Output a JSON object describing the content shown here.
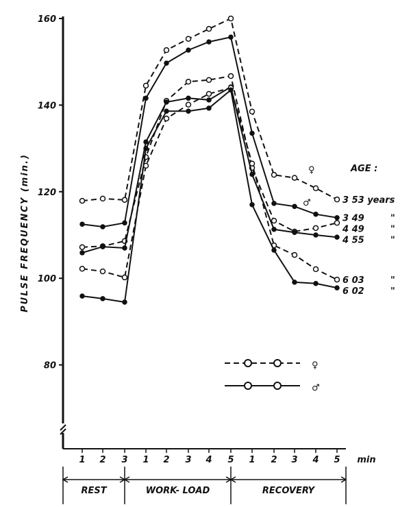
{
  "chart_data": {
    "type": "line",
    "title": "",
    "ylabel": "PULSE FREQUENCY (min.)",
    "xlabel": "min",
    "ylim": [
      60,
      160
    ],
    "yticks": [
      80,
      100,
      120,
      140,
      160
    ],
    "x_tick_labels": [
      "1",
      "2",
      "3",
      "1",
      "2",
      "3",
      "4",
      "5",
      "1",
      "2",
      "3",
      "4",
      "5"
    ],
    "phases": [
      {
        "label": "REST",
        "count": 3
      },
      {
        "label": "WORK- LOAD",
        "count": 5
      },
      {
        "label": "RECOVERY",
        "count": 5
      }
    ],
    "age_header": "AGE :",
    "age_female_symbol": "♀",
    "age_male_symbol": "♂",
    "legend": [
      {
        "sex": "female",
        "symbol": "♀",
        "style": "dashed-open-circle"
      },
      {
        "sex": "male",
        "symbol": "♂",
        "style": "solid-filled-dot"
      }
    ],
    "series": [
      {
        "name": "3 53 years",
        "ditto": "",
        "sex": "female",
        "values": [
          117.9,
          118.4,
          118.1,
          144.5,
          152.7,
          155.3,
          157.6,
          160.0,
          138.5,
          123.9,
          123.2,
          120.8,
          118.2
        ]
      },
      {
        "name": "3 49",
        "ditto": "\"",
        "sex": "male",
        "values": [
          112.5,
          111.9,
          112.8,
          141.6,
          149.7,
          152.7,
          154.6,
          155.7,
          133.5,
          117.3,
          116.6,
          114.8,
          114.0
        ]
      },
      {
        "name": "4 49",
        "ditto": "\"",
        "sex": "female",
        "values": [
          107.2,
          107.4,
          108.6,
          128.0,
          141.0,
          145.4,
          145.8,
          146.7,
          125.5,
          113.3,
          110.8,
          111.6,
          112.8
        ]
      },
      {
        "name": "4 55",
        "ditto": "\"",
        "sex": "male",
        "values": [
          105.9,
          107.3,
          107.0,
          131.5,
          140.7,
          141.6,
          141.2,
          144.2,
          124.0,
          111.3,
          110.6,
          110.0,
          109.5
        ]
      },
      {
        "name": "6 03",
        "ditto": "\"",
        "sex": "female",
        "values": [
          102.2,
          101.6,
          100.2,
          126.0,
          136.9,
          140.1,
          142.6,
          144.0,
          126.5,
          107.6,
          105.4,
          102.1,
          99.7
        ]
      },
      {
        "name": "6 02",
        "ditto": "\"",
        "sex": "male",
        "values": [
          95.9,
          95.3,
          94.5,
          130.0,
          138.6,
          138.6,
          139.3,
          143.5,
          117.0,
          106.5,
          99.1,
          98.8,
          97.8
        ]
      }
    ],
    "grid": false
  }
}
